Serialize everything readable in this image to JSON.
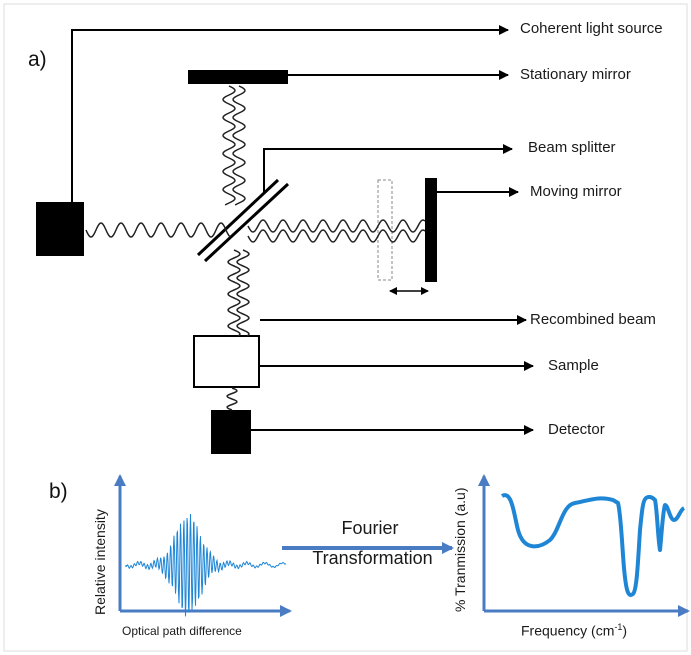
{
  "panels": {
    "a": "a)",
    "b": "b)"
  },
  "labels": {
    "coherent_light_source": "Coherent light source",
    "stationary_mirror": "Stationary mirror",
    "beam_splitter": "Beam splitter",
    "moving_mirror": "Moving mirror",
    "recombined_beam": "Recombined beam",
    "sample": "Sample",
    "detector": "Detector"
  },
  "interferogram": {
    "ylabel": "Relative intensity",
    "xlabel": "Optical path difference"
  },
  "transform": {
    "line1": "Fourier",
    "line2": "Transformation"
  },
  "spectrum": {
    "ylabel": "% Tranmission (a.u)",
    "xlabel_main": "Frequency (cm",
    "xlabel_sup": "-1",
    "xlabel_end": ")"
  },
  "colors": {
    "diagram": "#000000",
    "axes": "#4a7cc4",
    "plot_line": "#1f86d6"
  }
}
